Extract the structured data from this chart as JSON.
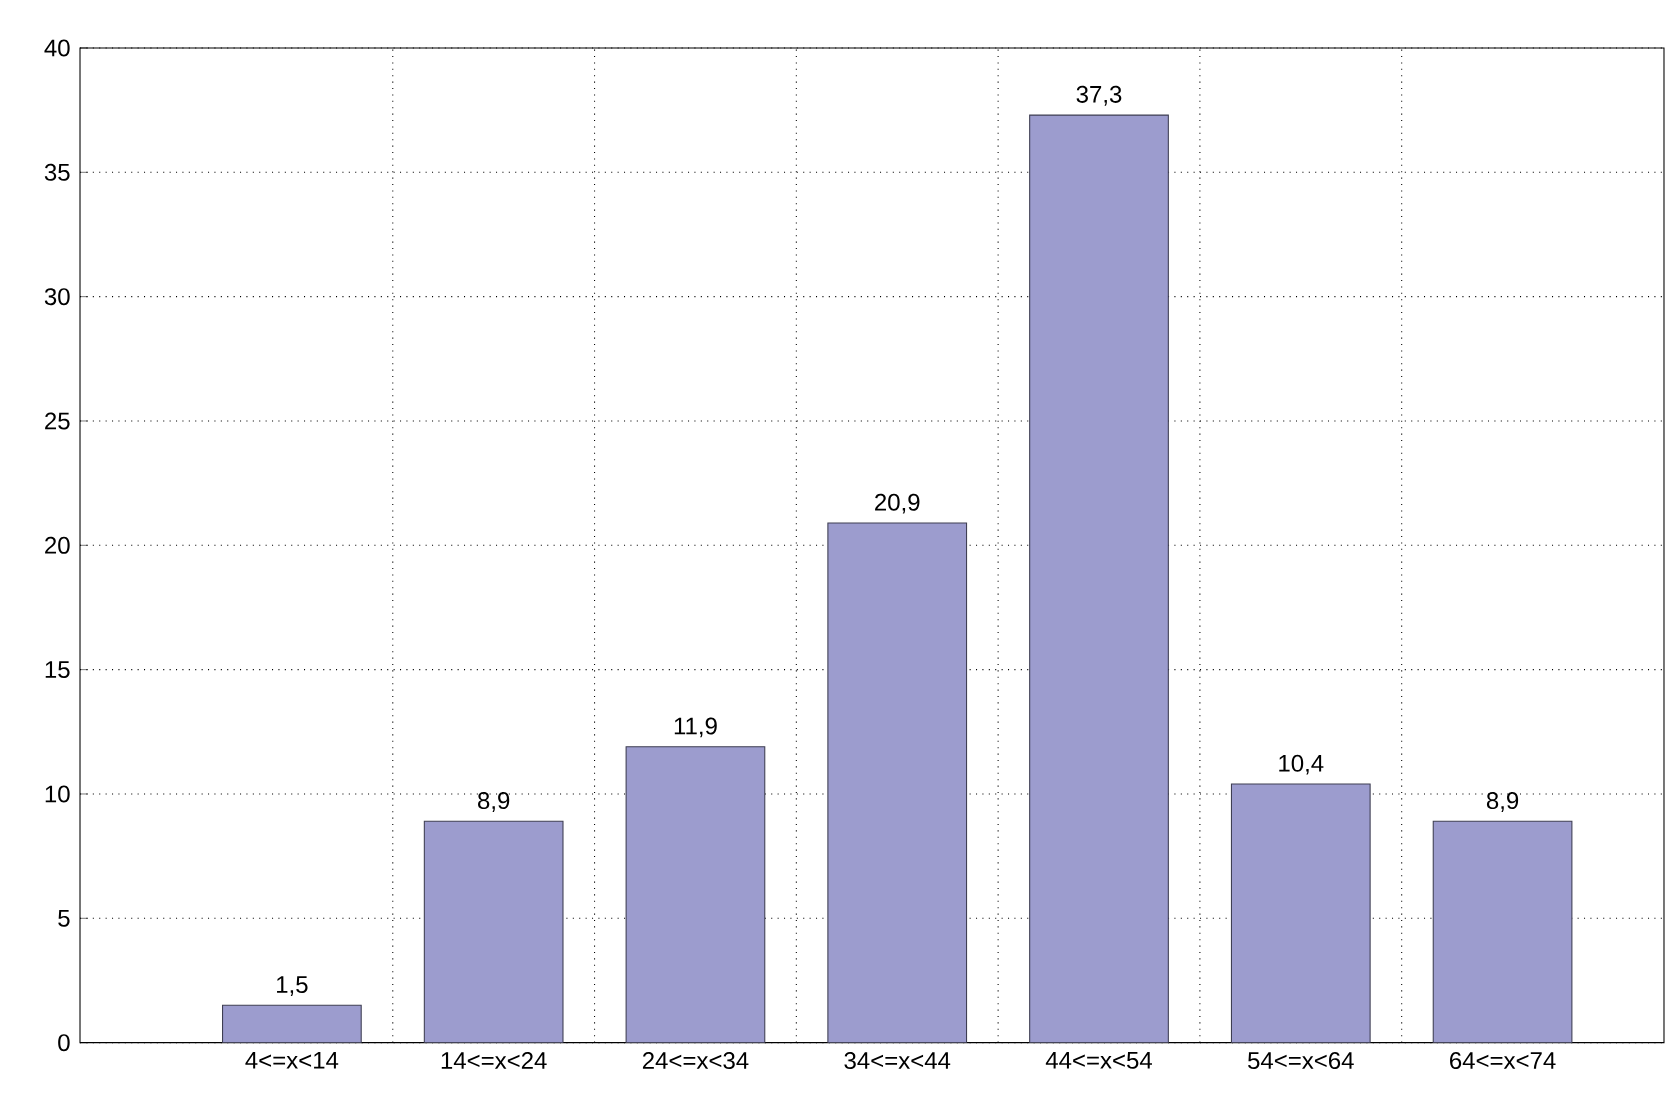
{
  "chart_data": {
    "type": "bar",
    "categories": [
      "4<=x<14",
      "14<=x<24",
      "24<=x<34",
      "34<=x<44",
      "44<=x<54",
      "54<=x<64",
      "64<=x<74"
    ],
    "values": [
      1.5,
      8.9,
      11.9,
      20.9,
      37.3,
      10.4,
      8.9
    ],
    "value_labels": [
      "1,5",
      "8,9",
      "11,9",
      "20,9",
      "37,3",
      "10,4",
      "8,9"
    ],
    "color": "#9c9cce",
    "ylim": [
      0,
      40
    ],
    "yticks": [
      0,
      5,
      10,
      15,
      20,
      25,
      30,
      35,
      40
    ],
    "grid": true
  }
}
